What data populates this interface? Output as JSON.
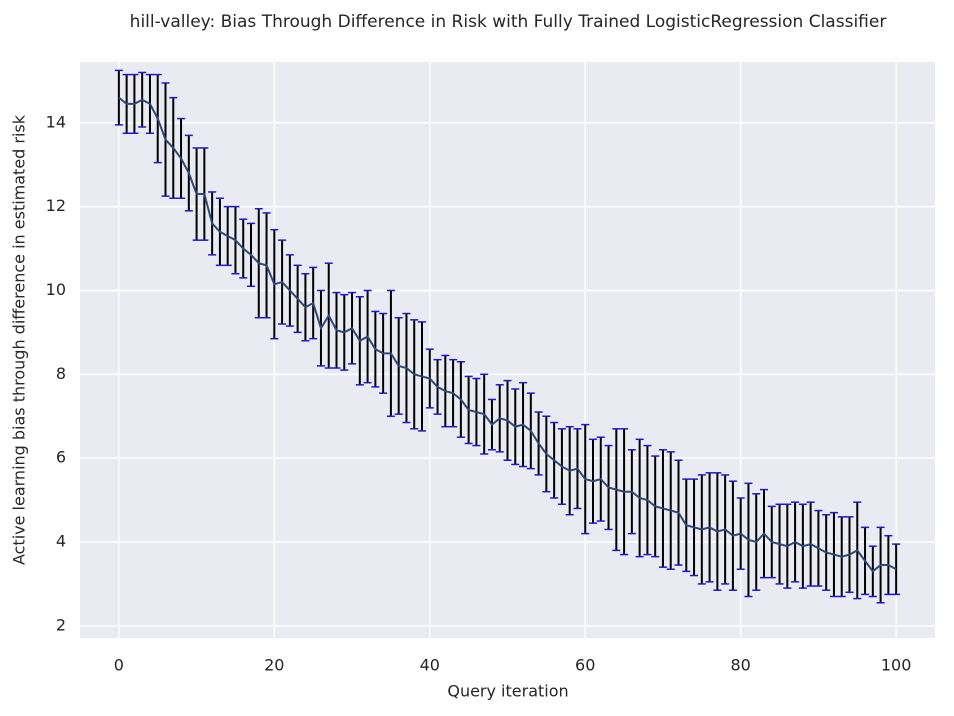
{
  "chart_data": {
    "type": "errorbar-line",
    "title": "hill-valley: Bias Through Difference in Risk with Fully Trained LogisticRegression Classifier",
    "xlabel": "Query iteration",
    "ylabel": "Active learning bias through difference in estimated risk",
    "x": [
      0,
      1,
      2,
      3,
      4,
      5,
      6,
      7,
      8,
      9,
      10,
      11,
      12,
      13,
      14,
      15,
      16,
      17,
      18,
      19,
      20,
      21,
      22,
      23,
      24,
      25,
      26,
      27,
      28,
      29,
      30,
      31,
      32,
      33,
      34,
      35,
      36,
      37,
      38,
      39,
      40,
      41,
      42,
      43,
      44,
      45,
      46,
      47,
      48,
      49,
      50,
      51,
      52,
      53,
      54,
      55,
      56,
      57,
      58,
      59,
      60,
      61,
      62,
      63,
      64,
      65,
      66,
      67,
      68,
      69,
      70,
      71,
      72,
      73,
      74,
      75,
      76,
      77,
      78,
      79,
      80,
      81,
      82,
      83,
      84,
      85,
      86,
      87,
      88,
      89,
      90,
      91,
      92,
      93,
      94,
      95,
      96,
      97,
      98,
      99,
      100
    ],
    "values": [
      14.6,
      14.45,
      14.45,
      14.55,
      14.45,
      14.1,
      13.6,
      13.4,
      13.15,
      12.8,
      12.3,
      12.3,
      11.6,
      11.4,
      11.3,
      11.2,
      11.0,
      10.85,
      10.65,
      10.6,
      10.15,
      10.2,
      10.0,
      9.8,
      9.6,
      9.7,
      9.1,
      9.4,
      9.05,
      9.0,
      9.1,
      8.8,
      8.9,
      8.6,
      8.5,
      8.5,
      8.2,
      8.15,
      8.0,
      7.95,
      7.9,
      7.7,
      7.6,
      7.55,
      7.4,
      7.15,
      7.1,
      7.05,
      6.8,
      6.95,
      6.9,
      6.75,
      6.8,
      6.65,
      6.35,
      6.1,
      5.95,
      5.8,
      5.7,
      5.75,
      5.5,
      5.45,
      5.5,
      5.3,
      5.25,
      5.2,
      5.2,
      5.05,
      5.0,
      4.85,
      4.8,
      4.75,
      4.7,
      4.4,
      4.35,
      4.3,
      4.35,
      4.25,
      4.3,
      4.15,
      4.2,
      4.05,
      4.0,
      4.2,
      4.0,
      3.95,
      3.9,
      4.0,
      3.9,
      3.95,
      3.85,
      3.75,
      3.7,
      3.65,
      3.7,
      3.8,
      3.55,
      3.3,
      3.45,
      3.45,
      3.35
    ],
    "errors": [
      0.65,
      0.7,
      0.7,
      0.65,
      0.7,
      1.05,
      1.35,
      1.2,
      0.95,
      0.9,
      1.1,
      1.1,
      0.75,
      0.8,
      0.7,
      0.8,
      0.7,
      0.75,
      1.3,
      1.25,
      1.3,
      1.0,
      0.85,
      0.8,
      0.8,
      0.85,
      0.9,
      1.25,
      0.9,
      0.9,
      0.85,
      1.05,
      1.1,
      0.9,
      0.95,
      1.5,
      1.15,
      1.3,
      1.3,
      1.3,
      0.7,
      0.65,
      0.85,
      0.8,
      0.9,
      0.8,
      0.8,
      0.95,
      0.6,
      0.8,
      0.95,
      0.9,
      1.0,
      0.9,
      0.75,
      0.9,
      0.9,
      0.9,
      1.05,
      0.95,
      1.3,
      1.0,
      1.0,
      1.0,
      1.45,
      1.5,
      1.0,
      1.4,
      1.3,
      1.2,
      1.4,
      1.4,
      1.25,
      1.1,
      1.15,
      1.3,
      1.3,
      1.4,
      1.3,
      1.3,
      0.85,
      1.35,
      1.15,
      1.05,
      0.85,
      0.95,
      1.0,
      0.95,
      1.0,
      1.0,
      0.9,
      0.9,
      1.0,
      0.95,
      0.9,
      1.15,
      0.8,
      0.6,
      0.9,
      0.7,
      0.6
    ],
    "color": "#2b4a7a",
    "errorbar_color": "#000000",
    "cap_color": "#1a1acc",
    "xlim": [
      -5,
      105
    ],
    "ylim": [
      1.71,
      15.45
    ],
    "xticks": [
      0,
      20,
      40,
      60,
      80,
      100
    ],
    "yticks": [
      2,
      4,
      6,
      8,
      10,
      12,
      14
    ],
    "grid": true
  }
}
